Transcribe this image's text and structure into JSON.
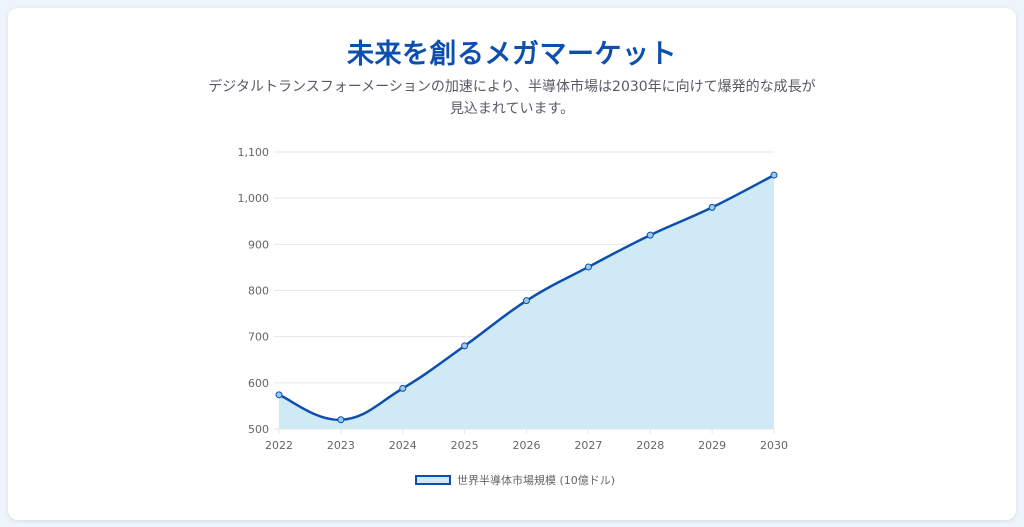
{
  "header": {
    "title": "未来を創るメガマーケット",
    "subtitle": "デジタルトランスフォーメーションの加速により、半導体市場は2030年に向けて爆発的な成長が見込まれています。"
  },
  "colors": {
    "line": "#0d4fae",
    "fill": "#cfeaf5",
    "point_fill": "#9cc9ec",
    "grid": "#e6e6e6"
  },
  "chart_data": {
    "type": "area",
    "title": "",
    "xlabel": "",
    "ylabel": "",
    "categories": [
      "2022",
      "2023",
      "2024",
      "2025",
      "2026",
      "2027",
      "2028",
      "2029",
      "2030"
    ],
    "series": [
      {
        "name": "世界半導体市場規模 (10億ドル)",
        "values": [
          574,
          520,
          588,
          680,
          778,
          851,
          920,
          980,
          1050
        ]
      }
    ],
    "ylim": [
      500,
      1100
    ],
    "yticks": [
      "500",
      "600",
      "700",
      "800",
      "900",
      "1,000",
      "1,100"
    ],
    "grid": true,
    "legend_position": "bottom"
  }
}
